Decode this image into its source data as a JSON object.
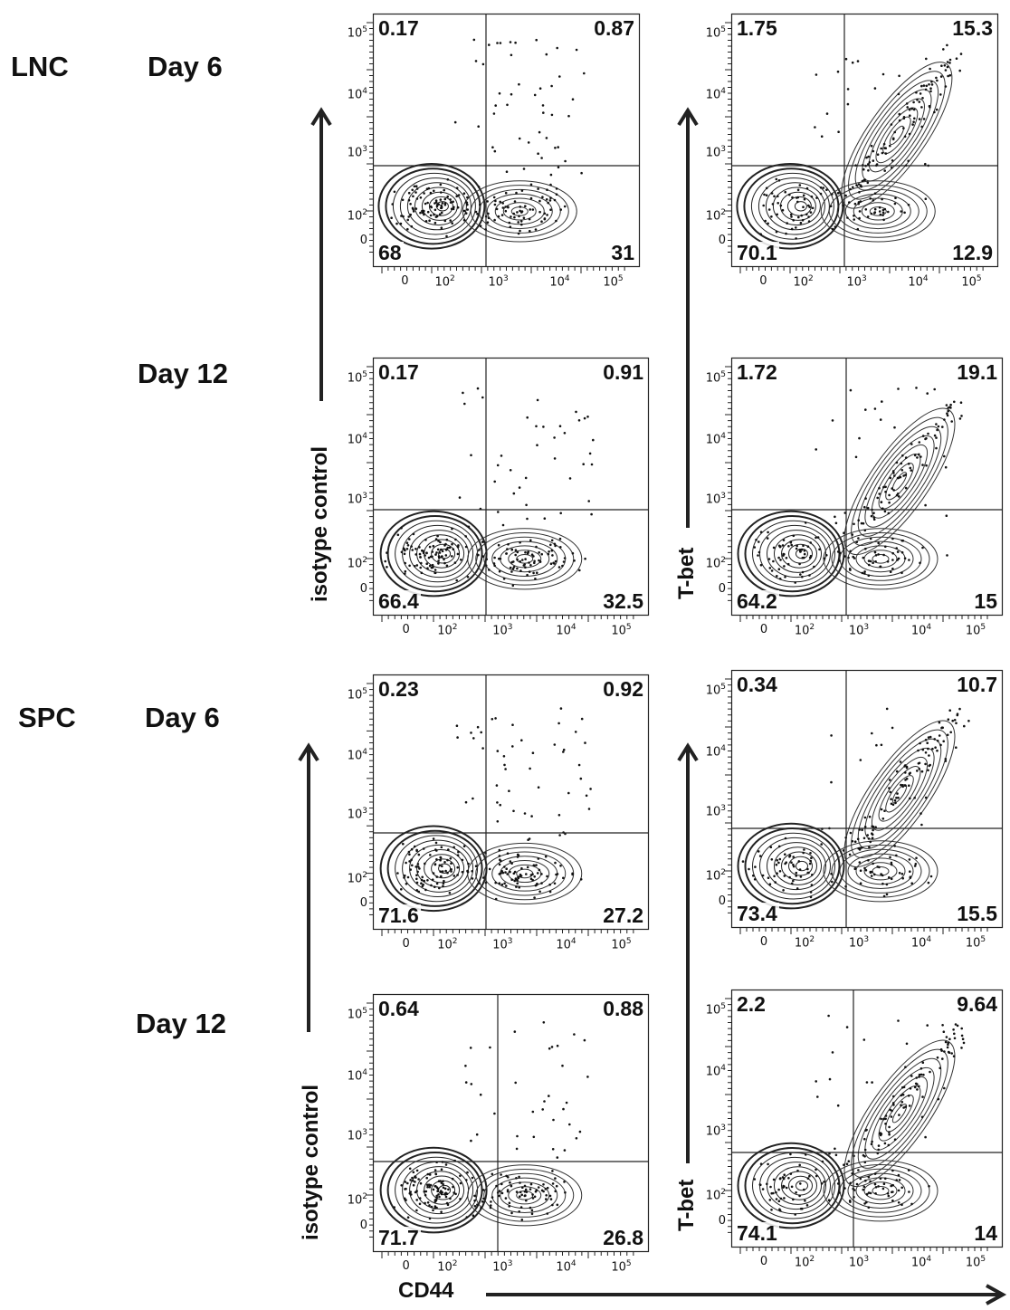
{
  "row_labels": {
    "lnc": "LNC",
    "spc": "SPC",
    "day6_a": "Day 6",
    "day12_a": "Day 12",
    "day6_b": "Day 6",
    "day12_b": "Day 12"
  },
  "axis_labels": {
    "iso_1": "isotype control",
    "tbet_1": "T-bet",
    "iso_2": "isotype control",
    "tbet_2": "T-bet",
    "x": "CD44"
  },
  "ticks": {
    "y": [
      "10^5",
      "10^4",
      "10^3",
      "10^2",
      "0"
    ],
    "x": [
      "0",
      "10^2",
      "10^3",
      "10^4",
      "10^5"
    ]
  },
  "panels": [
    {
      "id": "lnc_d6_iso",
      "q": [
        "0.17",
        "0.87",
        "68",
        "31"
      ]
    },
    {
      "id": "lnc_d6_tbet",
      "q": [
        "1.75",
        "15.3",
        "70.1",
        "12.9"
      ]
    },
    {
      "id": "lnc_d12_iso",
      "q": [
        "0.17",
        "0.91",
        "66.4",
        "32.5"
      ]
    },
    {
      "id": "lnc_d12_tbet",
      "q": [
        "1.72",
        "19.1",
        "64.2",
        "15"
      ]
    },
    {
      "id": "spc_d6_iso",
      "q": [
        "0.23",
        "0.92",
        "71.6",
        "27.2"
      ]
    },
    {
      "id": "spc_d6_tbet",
      "q": [
        "0.34",
        "10.7",
        "73.4",
        "15.5"
      ]
    },
    {
      "id": "spc_d12_iso",
      "q": [
        "0.64",
        "0.88",
        "71.7",
        "26.8"
      ]
    },
    {
      "id": "spc_d12_tbet",
      "q": [
        "2.2",
        "9.64",
        "74.1",
        "14"
      ]
    }
  ]
}
